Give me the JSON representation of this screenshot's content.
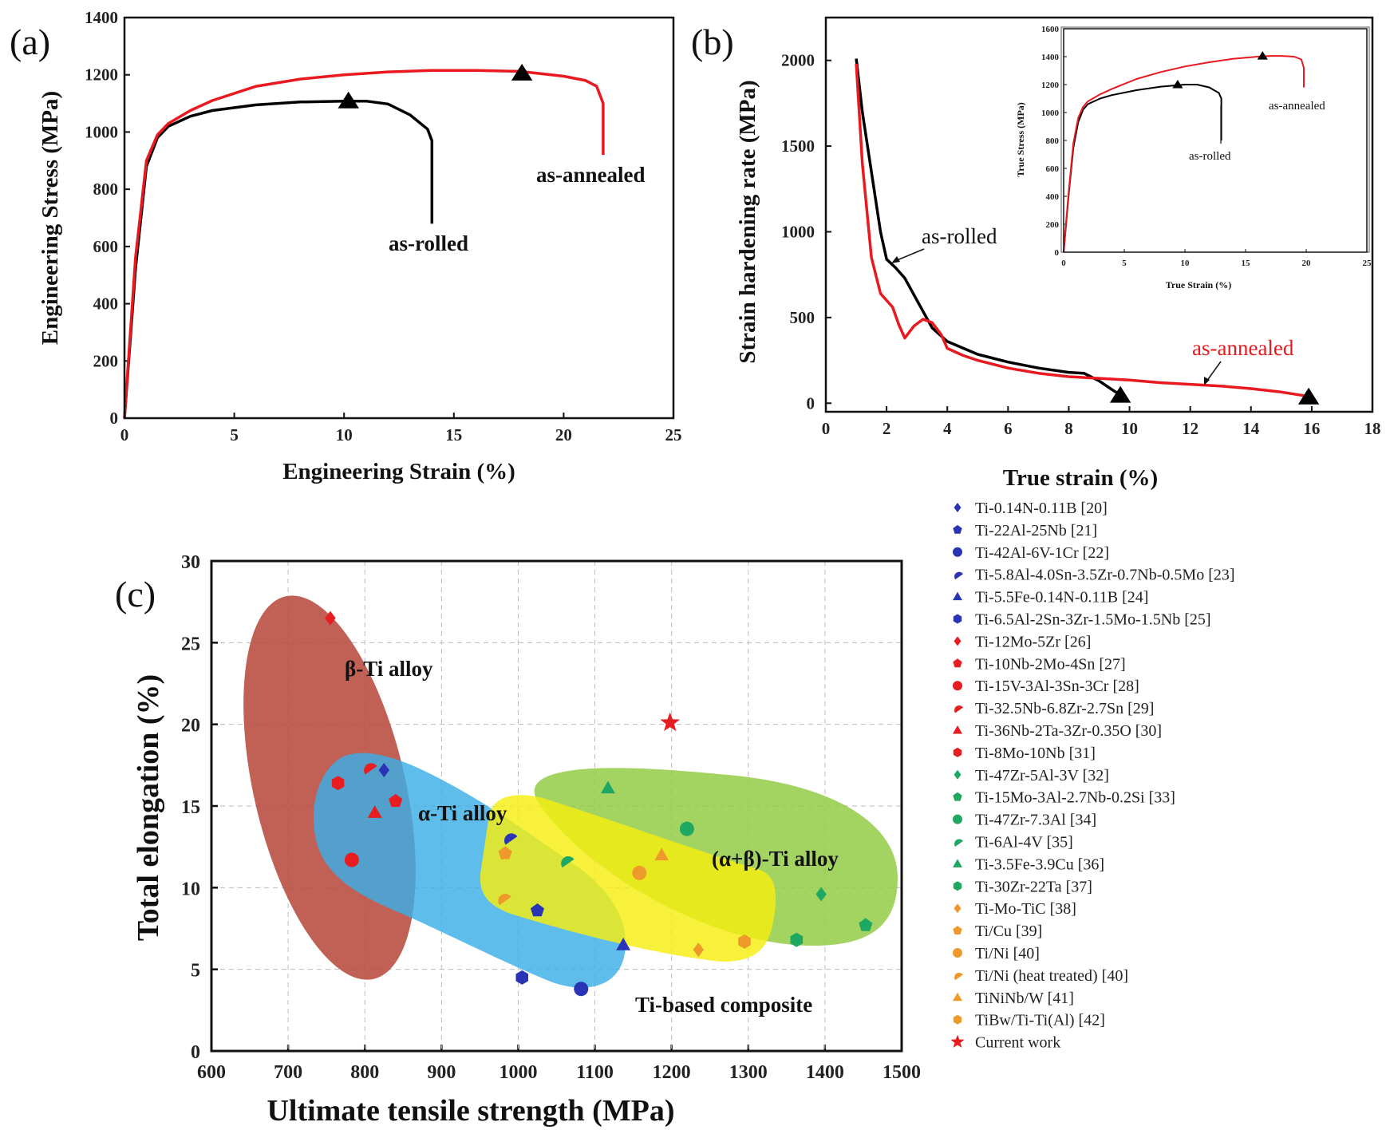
{
  "colors": {
    "as_rolled": "#000000",
    "as_annealed": "#e8191f",
    "beta_region": "#b84a3e",
    "alpha_region": "#3aaee6",
    "alpha_beta_region": "#8fca3e",
    "composite_region": "#f5ee10",
    "blue_markers": "#2a35b5",
    "red_markers": "#e81d22",
    "green_markers": "#1fa862",
    "orange_markers": "#ee9a2a",
    "current_work": "#e81d22"
  },
  "chart_data": [
    {
      "panel": "(a)",
      "type": "line",
      "xlabel": "Engineering Strain (%)",
      "ylabel": "Engineering Stress (MPa)",
      "xlim": [
        0,
        25
      ],
      "ylim": [
        0,
        1400
      ],
      "xticks": [
        0,
        5,
        10,
        15,
        20,
        25
      ],
      "yticks": [
        0,
        200,
        400,
        600,
        800,
        1000,
        1200,
        1400
      ],
      "series": [
        {
          "name": "as-rolled",
          "color": "#000000",
          "points": [
            [
              0,
              0
            ],
            [
              0.5,
              520
            ],
            [
              1,
              880
            ],
            [
              1.5,
              980
            ],
            [
              2,
              1020
            ],
            [
              3,
              1055
            ],
            [
              4,
              1075
            ],
            [
              6,
              1095
            ],
            [
              8,
              1105
            ],
            [
              10,
              1108
            ],
            [
              11,
              1108
            ],
            [
              12,
              1098
            ],
            [
              13,
              1060
            ],
            [
              13.8,
              1010
            ],
            [
              14,
              970
            ],
            [
              14,
              800
            ],
            [
              14,
              680
            ]
          ],
          "peak": [
            10.2,
            1108
          ]
        },
        {
          "name": "as-annealed",
          "color": "#e8191f",
          "points": [
            [
              0,
              0
            ],
            [
              0.5,
              560
            ],
            [
              1,
              900
            ],
            [
              1.5,
              990
            ],
            [
              2,
              1030
            ],
            [
              3,
              1075
            ],
            [
              4,
              1110
            ],
            [
              6,
              1160
            ],
            [
              8,
              1185
            ],
            [
              10,
              1200
            ],
            [
              12,
              1210
            ],
            [
              14,
              1215
            ],
            [
              16,
              1215
            ],
            [
              18,
              1212
            ],
            [
              20,
              1195
            ],
            [
              21,
              1180
            ],
            [
              21.5,
              1160
            ],
            [
              21.8,
              1100
            ],
            [
              21.8,
              920
            ]
          ],
          "peak": [
            18.1,
            1205
          ]
        }
      ],
      "annotations": [
        "as-annealed",
        "as-rolled"
      ]
    },
    {
      "panel": "(b)",
      "type": "line",
      "xlabel": "True strain (%)",
      "ylabel": "Strain hardening rate (MPa)",
      "xlim": [
        0,
        18
      ],
      "ylim": [
        -50,
        2250
      ],
      "xticks": [
        0,
        2,
        4,
        6,
        8,
        10,
        12,
        14,
        16,
        18
      ],
      "yticks": [
        0,
        500,
        1000,
        1500,
        2000
      ],
      "series": [
        {
          "name": "as-rolled",
          "color": "#000000",
          "points": [
            [
              1,
              2010
            ],
            [
              1.2,
              1700
            ],
            [
              1.5,
              1350
            ],
            [
              1.8,
              1000
            ],
            [
              2,
              840
            ],
            [
              2.3,
              790
            ],
            [
              2.6,
              730
            ],
            [
              3,
              600
            ],
            [
              3.5,
              440
            ],
            [
              4,
              360
            ],
            [
              5,
              285
            ],
            [
              6,
              240
            ],
            [
              7,
              205
            ],
            [
              8,
              180
            ],
            [
              8.5,
              175
            ],
            [
              9,
              130
            ],
            [
              9.5,
              70
            ],
            [
              9.7,
              50
            ]
          ],
          "end_marker": [
            9.7,
            45
          ]
        },
        {
          "name": "as-annealed",
          "color": "#e8191f",
          "points": [
            [
              1,
              1980
            ],
            [
              1.2,
              1400
            ],
            [
              1.5,
              850
            ],
            [
              1.8,
              640
            ],
            [
              2.2,
              560
            ],
            [
              2.4,
              460
            ],
            [
              2.6,
              380
            ],
            [
              2.9,
              450
            ],
            [
              3.2,
              490
            ],
            [
              3.5,
              470
            ],
            [
              3.8,
              400
            ],
            [
              4,
              320
            ],
            [
              4.5,
              280
            ],
            [
              5,
              250
            ],
            [
              6,
              205
            ],
            [
              7,
              175
            ],
            [
              8,
              155
            ],
            [
              9,
              145
            ],
            [
              10,
              135
            ],
            [
              11,
              120
            ],
            [
              12,
              110
            ],
            [
              13,
              100
            ],
            [
              14,
              85
            ],
            [
              15,
              65
            ],
            [
              15.9,
              40
            ]
          ],
          "end_marker": [
            15.9,
            35
          ]
        }
      ],
      "annotations": [
        "as-rolled",
        "as-annealed"
      ],
      "inset": {
        "type": "line",
        "xlabel": "True Strain (%)",
        "ylabel": "True Stress (MPa)",
        "xlim": [
          0,
          25
        ],
        "ylim": [
          0,
          1600
        ],
        "xticks": [
          0,
          5,
          10,
          15,
          20,
          25
        ],
        "yticks": [
          0,
          200,
          400,
          600,
          800,
          1000,
          1200,
          1400,
          1600
        ],
        "series": [
          {
            "name": "as-rolled",
            "color": "#000000",
            "points": [
              [
                0,
                0
              ],
              [
                0.4,
                400
              ],
              [
                0.8,
                750
              ],
              [
                1.2,
                930
              ],
              [
                1.6,
                1020
              ],
              [
                2,
                1060
              ],
              [
                3,
                1100
              ],
              [
                4,
                1125
              ],
              [
                6,
                1160
              ],
              [
                8,
                1185
              ],
              [
                10,
                1200
              ],
              [
                11,
                1200
              ],
              [
                12,
                1180
              ],
              [
                12.8,
                1140
              ],
              [
                13,
                1100
              ],
              [
                13,
                900
              ],
              [
                13,
                800
              ]
            ],
            "peak": [
              9.4,
              1200
            ]
          },
          {
            "name": "as-annealed",
            "color": "#e8191f",
            "points": [
              [
                0,
                0
              ],
              [
                0.4,
                420
              ],
              [
                0.8,
                780
              ],
              [
                1.2,
                960
              ],
              [
                1.6,
                1040
              ],
              [
                2,
                1080
              ],
              [
                3,
                1130
              ],
              [
                4,
                1170
              ],
              [
                6,
                1240
              ],
              [
                8,
                1290
              ],
              [
                10,
                1330
              ],
              [
                12,
                1360
              ],
              [
                14,
                1385
              ],
              [
                16,
                1400
              ],
              [
                17,
                1405
              ],
              [
                18,
                1405
              ],
              [
                19,
                1400
              ],
              [
                19.6,
                1380
              ],
              [
                19.8,
                1320
              ],
              [
                19.8,
                1180
              ]
            ],
            "peak": [
              16.4,
              1405
            ]
          }
        ],
        "annotations": [
          "as-annealed",
          "as-rolled"
        ]
      }
    },
    {
      "panel": "(c)",
      "type": "scatter",
      "xlabel": "Ultimate tensile strength (MPa)",
      "ylabel": "Total elongation (%)",
      "xlim": [
        600,
        1500
      ],
      "ylim": [
        0,
        30
      ],
      "xticks": [
        600,
        700,
        800,
        900,
        1000,
        1100,
        1200,
        1300,
        1400,
        1500
      ],
      "yticks": [
        0,
        5,
        10,
        15,
        20,
        25,
        30
      ],
      "grid": true,
      "regions": [
        "β-Ti alloy",
        "α-Ti alloy",
        "(α+β)-Ti alloy",
        "Ti-based composite"
      ],
      "legend_position": "right",
      "series": [
        {
          "name": "Ti-0.14N-0.11B [20]",
          "ref": "[20]",
          "alloy": "Ti-0.14N-0.11B",
          "marker": "diamond",
          "color": "#2a35b5",
          "x": 825,
          "y": 17.2
        },
        {
          "name": "Ti-22Al-25Nb [21]",
          "ref": "[21]",
          "alloy": "Ti-22Al-25Nb",
          "marker": "pentagon",
          "color": "#2a35b5",
          "x": 1025,
          "y": 8.6
        },
        {
          "name": "Ti-42Al-6V-1Cr [22]",
          "ref": "[22]",
          "alloy": "Ti-42Al-6V-1Cr",
          "marker": "circle",
          "color": "#2a35b5",
          "x": 1082,
          "y": 3.8
        },
        {
          "name": "Ti-5.8Al-4.0Sn-3.5Zr-0.7Nb-0.5Mo [23]",
          "ref": "[23]",
          "alloy": "Ti-5.8Al-4.0Sn-3.5Zr-0.7Nb-0.5Mo",
          "marker": "half",
          "color": "#2a35b5",
          "x": 988,
          "y": 13.1
        },
        {
          "name": "Ti-5.5Fe-0.14N-0.11B [24]",
          "ref": "[24]",
          "alloy": "Ti-5.5Fe-0.14N-0.11B",
          "marker": "triangle",
          "color": "#2a35b5",
          "x": 1137,
          "y": 6.5
        },
        {
          "name": "Ti-6.5Al-2Sn-3Zr-1.5Mo-1.5Nb [25]",
          "ref": "[25]",
          "alloy": "Ti-6.5Al-2Sn-3Zr-1.5Mo-1.5Nb",
          "marker": "hexagon",
          "color": "#2a35b5",
          "x": 1005,
          "y": 4.5
        },
        {
          "name": "Ti-12Mo-5Zr [26]",
          "ref": "[26]",
          "alloy": "Ti-12Mo-5Zr",
          "marker": "diamond",
          "color": "#e81d22",
          "x": 755,
          "y": 26.5
        },
        {
          "name": "Ti-10Nb-2Mo-4Sn [27]",
          "ref": "[27]",
          "alloy": "Ti-10Nb-2Mo-4Sn",
          "marker": "pentagon",
          "color": "#e81d22",
          "x": 840,
          "y": 15.3
        },
        {
          "name": "Ti-15V-3Al-3Sn-3Cr [28]",
          "ref": "[28]",
          "alloy": "Ti-15V-3Al-3Sn-3Cr",
          "marker": "circle",
          "color": "#e81d22",
          "x": 783,
          "y": 11.7
        },
        {
          "name": "Ti-32.5Nb-6.8Zr-2.7Sn [29]",
          "ref": "[29]",
          "alloy": "Ti-32.5Nb-6.8Zr-2.7Sn",
          "marker": "half",
          "color": "#e81d22",
          "x": 805,
          "y": 17.4
        },
        {
          "name": "Ti-36Nb-2Ta-3Zr-0.35O [30]",
          "ref": "[30]",
          "alloy": "Ti-36Nb-2Ta-3Zr-0.35O",
          "marker": "triangle",
          "color": "#e81d22",
          "x": 813,
          "y": 14.6
        },
        {
          "name": "Ti-8Mo-10Nb [31]",
          "ref": "[31]",
          "alloy": "Ti-8Mo-10Nb",
          "marker": "hexagon",
          "color": "#e81d22",
          "x": 765,
          "y": 16.4
        },
        {
          "name": "Ti-47Zr-5Al-3V [32]",
          "ref": "[32]",
          "alloy": "Ti-47Zr-5Al-3V",
          "marker": "diamond",
          "color": "#1fa862",
          "x": 1395,
          "y": 9.6
        },
        {
          "name": "Ti-15Mo-3Al-2.7Nb-0.2Si [33]",
          "ref": "[33]",
          "alloy": "Ti-15Mo-3Al-2.7Nb-0.2Si",
          "marker": "pentagon",
          "color": "#1fa862",
          "x": 1453,
          "y": 7.7
        },
        {
          "name": "Ti-47Zr-7.3Al [34]",
          "ref": "[34]",
          "alloy": "Ti-47Zr-7.3Al",
          "marker": "circle",
          "color": "#1fa862",
          "x": 1220,
          "y": 13.6
        },
        {
          "name": "Ti-6Al-4V [35]",
          "ref": "[35]",
          "alloy": "Ti-6Al-4V",
          "marker": "half",
          "color": "#1fa862",
          "x": 1062,
          "y": 11.7
        },
        {
          "name": "Ti-3.5Fe-3.9Cu [36]",
          "ref": "[36]",
          "alloy": "Ti-3.5Fe-3.9Cu",
          "marker": "triangle",
          "color": "#1fa862",
          "x": 1117,
          "y": 16.1
        },
        {
          "name": "Ti-30Zr-22Ta [37]",
          "ref": "[37]",
          "alloy": "Ti-30Zr-22Ta",
          "marker": "hexagon",
          "color": "#1fa862",
          "x": 1363,
          "y": 6.8
        },
        {
          "name": "Ti-Mo-TiC [38]",
          "ref": "[38]",
          "alloy": "Ti-Mo-TiC",
          "marker": "diamond",
          "color": "#ee9a2a",
          "x": 1235,
          "y": 6.2
        },
        {
          "name": "Ti/Cu [39]",
          "ref": "[39]",
          "alloy": "Ti/Cu",
          "marker": "pentagon",
          "color": "#ee9a2a",
          "x": 983,
          "y": 12.1
        },
        {
          "name": "Ti/Ni [40]",
          "ref": "[40]",
          "alloy": "Ti/Ni",
          "marker": "circle",
          "color": "#ee9a2a",
          "x": 1158,
          "y": 10.9
        },
        {
          "name": "Ti/Ni (heat treated) [40]",
          "ref": "[40]",
          "alloy": "Ti/Ni (heat treated)",
          "marker": "half",
          "color": "#ee9a2a",
          "x": 980,
          "y": 9.4
        },
        {
          "name": "TiNiNb/W [41]",
          "ref": "[41]",
          "alloy": "TiNiNb/W",
          "marker": "triangle",
          "color": "#ee9a2a",
          "x": 1187,
          "y": 12
        },
        {
          "name": "TiBw/Ti-Ti(Al) [42]",
          "ref": "[42]",
          "alloy": "TiBw/Ti-Ti(Al)",
          "marker": "hexagon",
          "color": "#ee9a2a",
          "x": 1295,
          "y": 6.7
        },
        {
          "name": "Current work",
          "ref": "",
          "alloy": "Current work",
          "marker": "star",
          "color": "#e81d22",
          "x": 1198,
          "y": 20.1
        }
      ]
    }
  ],
  "panel_labels": [
    "(a)",
    "(b)",
    "(c)"
  ]
}
